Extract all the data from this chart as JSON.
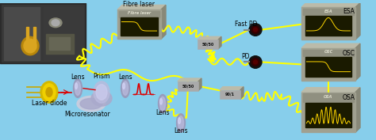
{
  "bg_color": "#87CEEB",
  "photo_bg": "#404040",
  "component_color": "#A0A090",
  "component_dark": "#606050",
  "screen_color": "#1A1A00",
  "trace_color": "#FFD700",
  "fiber_color": "#FFFF00",
  "laser_beam_color": "#DD0000",
  "label_color": "#000000",
  "label_fontsize": 5.5,
  "labels": {
    "laser_diode": "Laser diode",
    "lens1": "Lens",
    "prism": "Prism",
    "lens2": "Lens",
    "microresonator": "Microresonator",
    "fibre_laser": "Fibre laser",
    "fast_pd": "Fast PD",
    "pd": "PD",
    "esa": "ESA",
    "osc": "OSC",
    "osa": "OSA",
    "lens3": "Lens",
    "c5050_1": "50/50",
    "c5050_2": "50/50",
    "c9010": "90/1"
  }
}
